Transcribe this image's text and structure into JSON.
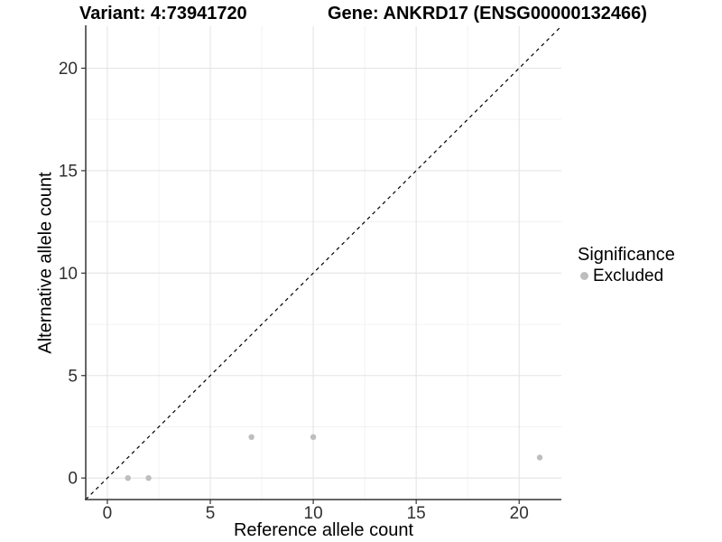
{
  "header": {
    "variant_label": "Variant: 4:73941720",
    "gene_label": "Gene: ANKRD17 (ENSG00000132466)"
  },
  "chart_data": {
    "type": "scatter",
    "xlabel": "Reference allele count",
    "ylabel": "Alternative allele count",
    "xlim": [
      -1.05,
      22.05
    ],
    "ylim": [
      -1.05,
      22.05
    ],
    "x_ticks": [
      0,
      5,
      10,
      15,
      20
    ],
    "y_ticks": [
      0,
      5,
      10,
      15,
      20
    ],
    "x_minor_ticks": [
      2.5,
      7.5,
      12.5,
      17.5
    ],
    "y_minor_ticks": [
      2.5,
      7.5,
      12.5,
      17.5
    ],
    "grid": "major+minor",
    "identity_line": {
      "type": "y=x",
      "dash": "dashed",
      "color": "#000000"
    },
    "series": [
      {
        "name": "Excluded",
        "color": "#bebebe",
        "points": [
          {
            "x": 1,
            "y": 0
          },
          {
            "x": 2,
            "y": 0
          },
          {
            "x": 7,
            "y": 2
          },
          {
            "x": 10,
            "y": 2
          },
          {
            "x": 21,
            "y": 1
          }
        ]
      }
    ],
    "legend": {
      "title": "Significance",
      "position": "right",
      "entries": [
        {
          "label": "Excluded",
          "color": "#bebebe"
        }
      ]
    }
  },
  "colors": {
    "background": "#ffffff",
    "grid_major": "#e4e4e4",
    "grid_minor": "#f1f1f1",
    "axis_line": "#333333",
    "tick_mark": "#333333",
    "tick_label": "#303030",
    "point": "#bebebe"
  }
}
